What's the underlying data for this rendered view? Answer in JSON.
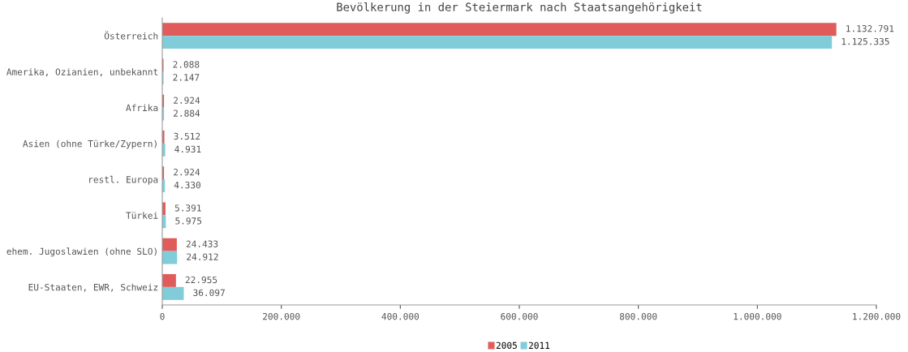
{
  "chart_data": {
    "type": "bar",
    "orientation": "horizontal",
    "title": "Bevölkerung in der Steiermark nach Staatsangehörigkeit",
    "categories": [
      "Österreich",
      "Amerika, Ozianien, unbekannt",
      "Afrika",
      "Asien (ohne Türke/Zypern)",
      "restl. Europa",
      "Türkei",
      "ehem. Jugoslawien (ohne SLO)",
      "EU-Staaten, EWR, Schweiz"
    ],
    "series": [
      {
        "name": "2005",
        "color": "#e05c5a",
        "values": [
          1132791,
          2088,
          2924,
          3512,
          2924,
          5391,
          24433,
          22955
        ],
        "value_labels": [
          "1.132.791",
          "2.088",
          "2.924",
          "3.512",
          "2.924",
          "5.391",
          "24.433",
          "22.955"
        ]
      },
      {
        "name": "2011",
        "color": "#80ccd8",
        "values": [
          1125335,
          2147,
          2884,
          4931,
          4330,
          5975,
          24912,
          36097
        ],
        "value_labels": [
          "1.125.335",
          "2.147",
          "2.884",
          "4.931",
          "4.330",
          "5.975",
          "24.912",
          "36.097"
        ]
      }
    ],
    "xlim": [
      0,
      1200000
    ],
    "xticks": [
      0,
      {
        "value": 200000,
        "label": "200.000"
      },
      {
        "value": 400000,
        "label": "400.000"
      },
      {
        "value": 600000,
        "label": "600.000"
      },
      {
        "value": 800000,
        "label": "800.000"
      },
      {
        "value": 1000000,
        "label": "1.000.000"
      },
      {
        "value": 1200000,
        "label": "1.200.000"
      }
    ],
    "grid": false,
    "legend": "bottom"
  }
}
